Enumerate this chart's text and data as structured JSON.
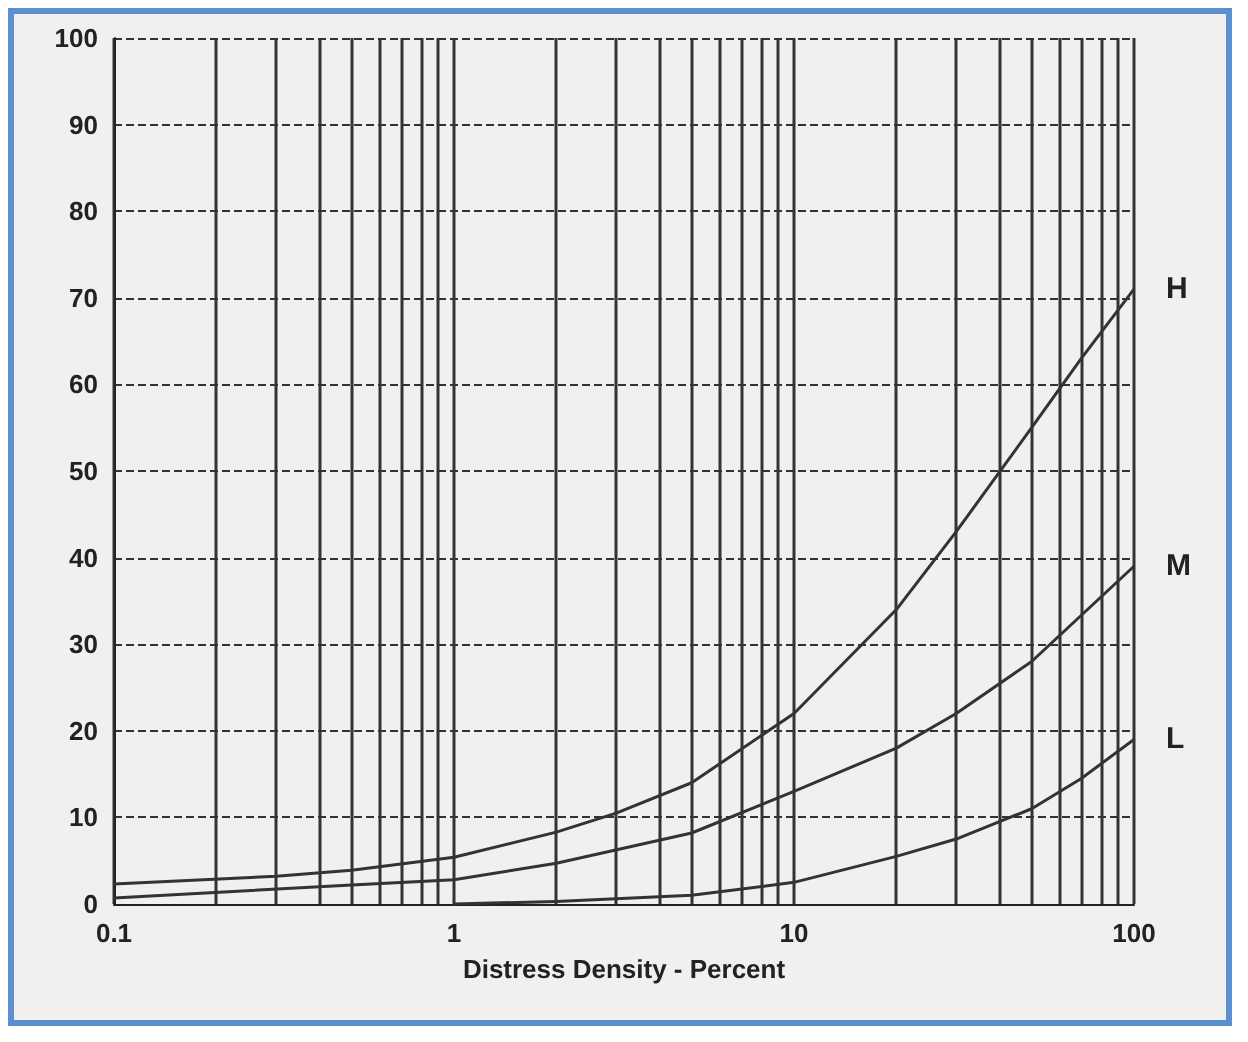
{
  "chart_data": {
    "type": "line",
    "xlabel": "Distress Density - Percent",
    "log": "x",
    "grid": true,
    "marker": "none",
    "xlim": [
      0.1,
      100
    ],
    "ylim": [
      0,
      100
    ],
    "xticks": [
      0.1,
      {
        "value": 0.2,
        "label": null
      },
      {
        "value": 0.3,
        "label": null
      },
      {
        "value": 0.4,
        "label": null
      },
      {
        "value": 0.5,
        "label": null
      },
      {
        "value": 0.6,
        "label": null
      },
      {
        "value": 0.7,
        "label": null
      },
      {
        "value": 0.8,
        "label": null
      },
      {
        "value": 0.9,
        "label": null
      },
      1,
      {
        "value": 2,
        "label": null
      },
      {
        "value": 3,
        "label": null
      },
      {
        "value": 4,
        "label": null
      },
      {
        "value": 5,
        "label": null
      },
      {
        "value": 6,
        "label": null
      },
      {
        "value": 7,
        "label": null
      },
      {
        "value": 8,
        "label": null
      },
      {
        "value": 9,
        "label": null
      },
      10,
      {
        "value": 20,
        "label": null
      },
      {
        "value": 30,
        "label": null
      },
      {
        "value": 40,
        "label": null
      },
      {
        "value": 50,
        "label": null
      },
      {
        "value": 60,
        "label": null
      },
      {
        "value": 70,
        "label": null
      },
      {
        "value": 80,
        "label": null
      },
      {
        "value": 90,
        "label": null
      },
      100
    ],
    "yticks": [
      0,
      10,
      20,
      30,
      40,
      50,
      60,
      70,
      80,
      90,
      100
    ],
    "series": [
      {
        "name": "H",
        "color": "#333333",
        "x": [
          0.1,
          0.3,
          0.5,
          1,
          2,
          3,
          5,
          10,
          20,
          30,
          50,
          70,
          100
        ],
        "values": [
          2.3,
          3.2,
          3.9,
          5.4,
          8.3,
          10.5,
          14,
          22,
          34,
          43,
          55,
          63,
          71
        ]
      },
      {
        "name": "M",
        "color": "#333333",
        "x": [
          0.1,
          0.5,
          1,
          2,
          5,
          10,
          20,
          30,
          50,
          100
        ],
        "values": [
          0.7,
          2.2,
          2.8,
          4.7,
          8.2,
          13,
          18,
          22,
          28,
          39
        ]
      },
      {
        "name": "L",
        "color": "#333333",
        "x": [
          1,
          2,
          5,
          10,
          20,
          30,
          50,
          70,
          100
        ],
        "values": [
          0,
          0.3,
          1,
          2.5,
          5.5,
          7.5,
          11,
          14.5,
          19
        ]
      }
    ]
  }
}
